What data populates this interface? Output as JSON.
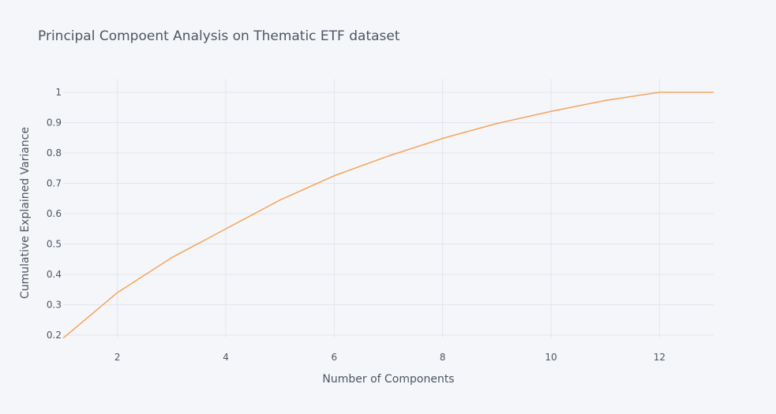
{
  "chart_data": {
    "type": "line",
    "title": "Principal Compoent Analysis on Thematic ETF dataset",
    "xlabel": "Number of Components",
    "ylabel": "Cumulative Explained Variance",
    "xlim": [
      1,
      13
    ],
    "ylim": [
      0.18,
      1.05
    ],
    "x_ticks": [
      2,
      4,
      6,
      8,
      10,
      12
    ],
    "y_ticks": [
      0.2,
      0.3,
      0.4,
      0.5,
      0.6,
      0.7,
      0.8,
      0.9,
      1
    ],
    "grid": true,
    "legend": "none",
    "series": [
      {
        "color": "#f5a45c",
        "x": [
          1,
          2,
          3,
          4,
          5,
          6,
          7,
          8,
          9,
          10,
          11,
          12,
          13
        ],
        "y": [
          0.19,
          0.34,
          0.455,
          0.55,
          0.645,
          0.725,
          0.79,
          0.848,
          0.897,
          0.937,
          0.973,
          1.0,
          1.0
        ]
      }
    ]
  }
}
